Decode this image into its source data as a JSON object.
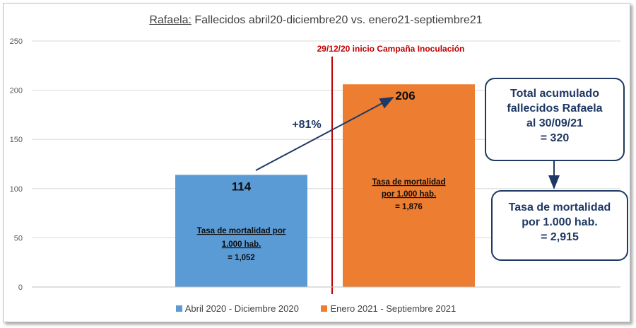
{
  "title": {
    "place": "Rafaela:",
    "rest": " Fallecidos abril20-diciembre20 vs. enero21-septiembre21"
  },
  "chart_data": {
    "type": "bar",
    "categories": [
      "Abril 2020 - Diciembre 2020",
      "Enero 2021 - Septiembre 2021"
    ],
    "values": [
      114,
      206
    ],
    "value_labels": [
      "114",
      "206"
    ],
    "colors": [
      "#5b9bd5",
      "#ed7d31"
    ],
    "ylim": [
      0,
      250
    ],
    "yticks": [
      0,
      50,
      100,
      150,
      200,
      250
    ],
    "grid": true,
    "legend": "bottom",
    "rate_notes": [
      {
        "line1": "Tasa de mortalidad por",
        "line2": "1.000 hab.",
        "line3": "= 1,052"
      },
      {
        "line1": "Tasa de mortalidad",
        "line2": "por 1.000 hab.",
        "line3": "= 1,876"
      }
    ],
    "annotations": {
      "campaign": "29/12/20 inicio Campaña  Inoculación",
      "campaign_color": "#c00000",
      "increase": "+81%"
    }
  },
  "boxes": {
    "total": {
      "line1": "Total acumulado",
      "line2": "fallecidos Rafaela",
      "line3": "al 30/09/21",
      "line4": "= 320"
    },
    "rate": {
      "line1": "Tasa de mortalidad",
      "line2": "por 1.000 hab.",
      "line3": "= 2,915"
    }
  },
  "accent_color": "#1f3864"
}
